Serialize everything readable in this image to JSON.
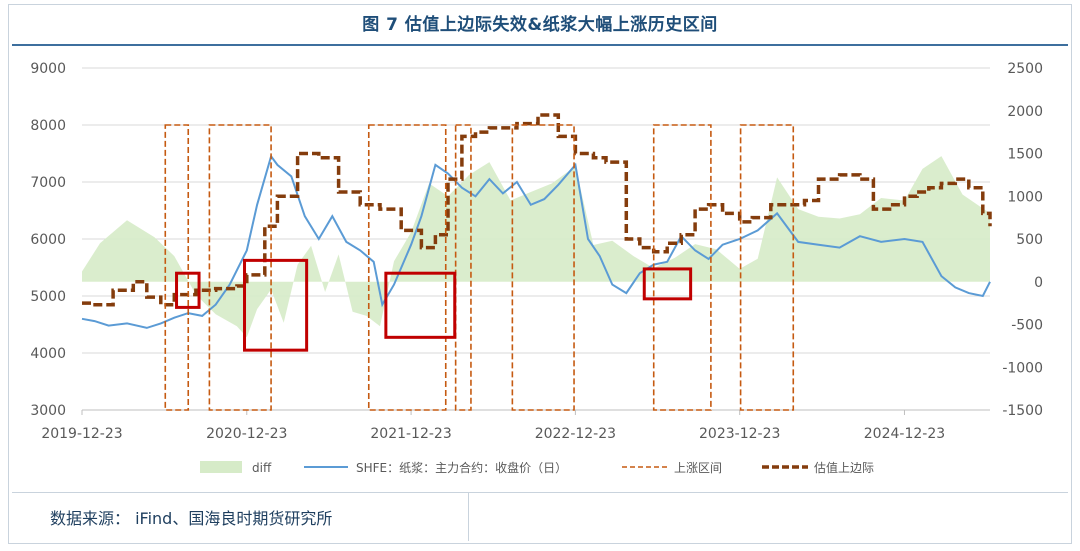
{
  "figure": {
    "title": "图 7 估值上边际失效&纸浆大幅上涨历史区间",
    "source": "数据来源： iFind、国海良时期货研究所"
  },
  "chart_data": {
    "type": "line",
    "x_ticks": [
      "2019-12-23",
      "2020-12-23",
      "2021-12-23",
      "2022-12-23",
      "2023-12-23",
      "2024-12-23"
    ],
    "x_range": [
      "2019-12-23",
      "2025-07-01"
    ],
    "left_axis": {
      "ticks": [
        3000,
        4000,
        5000,
        6000,
        7000,
        8000,
        9000
      ],
      "ylim": [
        3000,
        9000
      ]
    },
    "right_axis": {
      "ticks": [
        -1500,
        -1000,
        -500,
        0,
        500,
        1000,
        1500,
        2000,
        2500
      ],
      "ylim": [
        -1500,
        2500
      ]
    },
    "grid": true,
    "legend_position": "bottom",
    "legend": [
      {
        "label": "diff",
        "kind": "area",
        "color": "#d6ebc8"
      },
      {
        "label": "SHFE：纸浆：主力合约：收盘价（日）",
        "kind": "line",
        "color": "#5b9bd5"
      },
      {
        "label": "上涨区间",
        "kind": "dash",
        "color": "#c55a11"
      },
      {
        "label": "估值上边际",
        "kind": "thickdash",
        "color": "#843c0c"
      }
    ],
    "series": [
      {
        "name": "diff",
        "axis": "right",
        "type": "area",
        "color": "#d6ebc8",
        "x": [
          "2019-12-23",
          "2020-02-01",
          "2020-04-01",
          "2020-06-01",
          "2020-07-15",
          "2020-09-01",
          "2020-10-15",
          "2020-12-01",
          "2020-12-23",
          "2021-01-15",
          "2021-02-15",
          "2021-03-15",
          "2021-04-15",
          "2021-05-15",
          "2021-06-15",
          "2021-07-15",
          "2021-08-15",
          "2021-09-15",
          "2021-10-15",
          "2021-11-15",
          "2021-12-23",
          "2022-02-01",
          "2022-03-15",
          "2022-05-01",
          "2022-06-15",
          "2022-08-01",
          "2022-09-15",
          "2022-11-01",
          "2022-12-23",
          "2023-02-01",
          "2023-03-15",
          "2023-05-01",
          "2023-06-15",
          "2023-08-01",
          "2023-09-15",
          "2023-11-01",
          "2023-12-23",
          "2024-02-01",
          "2024-03-15",
          "2024-05-01",
          "2024-06-15",
          "2024-08-01",
          "2024-09-15",
          "2024-11-01",
          "2024-12-23",
          "2025-02-01",
          "2025-03-15",
          "2025-05-01",
          "2025-07-01"
        ],
        "values": [
          120,
          450,
          720,
          520,
          300,
          -150,
          -380,
          -520,
          -650,
          -320,
          -90,
          -480,
          200,
          420,
          -120,
          320,
          -350,
          -400,
          -520,
          240,
          580,
          1150,
          1000,
          1250,
          1400,
          950,
          1050,
          1150,
          1350,
          430,
          480,
          300,
          160,
          280,
          440,
          380,
          150,
          270,
          1220,
          850,
          760,
          740,
          790,
          980,
          950,
          1320,
          1470,
          1020,
          800
        ]
      },
      {
        "name": "SHFE：纸浆：主力合约：收盘价（日）",
        "axis": "left",
        "type": "line",
        "color": "#5b9bd5",
        "x": [
          "2019-12-23",
          "2020-01-20",
          "2020-02-20",
          "2020-04-01",
          "2020-05-15",
          "2020-06-15",
          "2020-07-15",
          "2020-08-15",
          "2020-09-15",
          "2020-10-15",
          "2020-11-15",
          "2020-12-23",
          "2021-01-15",
          "2021-02-15",
          "2021-03-01",
          "2021-04-01",
          "2021-05-01",
          "2021-06-01",
          "2021-07-01",
          "2021-08-01",
          "2021-09-01",
          "2021-10-01",
          "2021-10-20",
          "2021-11-15",
          "2021-12-23",
          "2022-01-15",
          "2022-02-15",
          "2022-03-15",
          "2022-04-15",
          "2022-05-15",
          "2022-06-15",
          "2022-07-15",
          "2022-08-15",
          "2022-09-15",
          "2022-10-15",
          "2022-11-15",
          "2022-12-23",
          "2023-01-20",
          "2023-02-15",
          "2023-03-15",
          "2023-04-15",
          "2023-05-15",
          "2023-06-15",
          "2023-07-15",
          "2023-08-15",
          "2023-09-15",
          "2023-10-15",
          "2023-11-15",
          "2023-12-23",
          "2024-02-01",
          "2024-03-15",
          "2024-05-01",
          "2024-06-15",
          "2024-08-01",
          "2024-09-15",
          "2024-11-01",
          "2024-12-23",
          "2025-02-01",
          "2025-03-15",
          "2025-04-15",
          "2025-05-15",
          "2025-06-15",
          "2025-07-01"
        ],
        "values": [
          4600,
          4560,
          4480,
          4520,
          4440,
          4520,
          4620,
          4700,
          4650,
          4850,
          5200,
          5800,
          6600,
          7450,
          7300,
          7100,
          6400,
          6000,
          6400,
          5950,
          5800,
          5600,
          4850,
          5200,
          5900,
          6400,
          7300,
          7150,
          6900,
          6750,
          7050,
          6800,
          7000,
          6600,
          6700,
          6950,
          7300,
          6000,
          5700,
          5200,
          5050,
          5400,
          5550,
          5600,
          6050,
          5800,
          5650,
          5900,
          6000,
          6150,
          6450,
          5950,
          5900,
          5850,
          6050,
          5950,
          6000,
          5950,
          5350,
          5150,
          5050,
          5000,
          5250
        ]
      },
      {
        "name": "估值上边际",
        "axis": "right",
        "type": "line",
        "color": "#843c0c",
        "x": [
          "2019-12-23",
          "2020-01-15",
          "2020-03-01",
          "2020-04-15",
          "2020-05-15",
          "2020-06-15",
          "2020-07-15",
          "2020-09-01",
          "2020-10-15",
          "2020-12-01",
          "2020-12-23",
          "2021-02-01",
          "2021-03-01",
          "2021-04-15",
          "2021-06-01",
          "2021-07-15",
          "2021-09-01",
          "2021-10-15",
          "2021-12-01",
          "2022-01-15",
          "2022-02-15",
          "2022-03-15",
          "2022-04-15",
          "2022-05-15",
          "2022-06-15",
          "2022-07-15",
          "2022-08-15",
          "2022-10-01",
          "2022-11-15",
          "2022-12-23",
          "2023-02-01",
          "2023-03-01",
          "2023-04-15",
          "2023-05-15",
          "2023-06-15",
          "2023-07-15",
          "2023-08-15",
          "2023-09-15",
          "2023-10-15",
          "2023-11-15",
          "2023-12-23",
          "2024-01-20",
          "2024-03-01",
          "2024-04-01",
          "2024-05-15",
          "2024-06-15",
          "2024-08-01",
          "2024-09-15",
          "2024-10-15",
          "2024-11-20",
          "2024-12-23",
          "2025-01-20",
          "2025-02-15",
          "2025-03-15",
          "2025-04-15",
          "2025-05-15",
          "2025-06-15",
          "2025-07-01"
        ],
        "values": [
          -250,
          -270,
          -100,
          0,
          -180,
          -270,
          -150,
          -100,
          -80,
          -50,
          80,
          650,
          1000,
          1500,
          1450,
          1050,
          900,
          850,
          600,
          400,
          550,
          1200,
          1700,
          1750,
          1800,
          1800,
          1850,
          1950,
          1700,
          1500,
          1450,
          1400,
          500,
          400,
          350,
          450,
          550,
          850,
          900,
          800,
          700,
          750,
          900,
          900,
          950,
          1200,
          1250,
          1200,
          850,
          900,
          1000,
          1050,
          1100,
          1150,
          1200,
          1100,
          800,
          650
        ]
      }
    ],
    "up_intervals": [
      {
        "start": "2020-06-25",
        "end": "2020-08-15"
      },
      {
        "start": "2020-10-01",
        "end": "2021-02-15"
      },
      {
        "start": "2021-09-20",
        "end": "2022-03-10"
      },
      {
        "start": "2022-04-01",
        "end": "2022-05-05"
      },
      {
        "start": "2022-08-05",
        "end": "2022-12-20"
      },
      {
        "start": "2023-06-15",
        "end": "2023-10-20"
      },
      {
        "start": "2023-12-25",
        "end": "2024-04-20"
      }
    ],
    "highlight_boxes": [
      {
        "x0": "2020-07-20",
        "x1": "2020-09-08",
        "y0": -300,
        "y1": 100
      },
      {
        "x0": "2020-12-18",
        "x1": "2021-05-05",
        "y0": -800,
        "y1": 250
      },
      {
        "x0": "2021-10-28",
        "x1": "2022-03-30",
        "y0": -650,
        "y1": 100
      },
      {
        "x0": "2023-05-25",
        "x1": "2023-09-05",
        "y0": -200,
        "y1": 150
      }
    ]
  }
}
